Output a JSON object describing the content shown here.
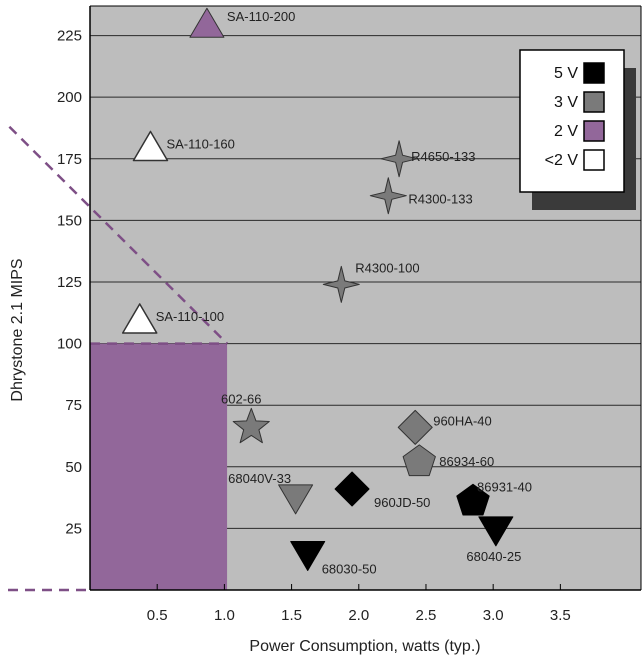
{
  "chart_data": {
    "type": "scatter",
    "xlabel": "Power Consumption, watts (typ.)",
    "ylabel": "Dhrystone 2.1 MIPS",
    "xlim": [
      0,
      4.1
    ],
    "ylim": [
      0,
      237
    ],
    "x_ticks": [
      "0.5",
      "1.0",
      "1.5",
      "2.0",
      "2.5",
      "3.0",
      "3.5"
    ],
    "x_tick_values": [
      0.5,
      1.0,
      1.5,
      2.0,
      2.5,
      3.0,
      3.5
    ],
    "y_ticks": [
      "25",
      "50",
      "75",
      "100",
      "125",
      "150",
      "175",
      "200",
      "225"
    ],
    "y_tick_values": [
      25,
      50,
      75,
      100,
      125,
      150,
      175,
      200,
      225
    ],
    "grid": "horizontal",
    "plot_background": "#bdbdbd",
    "highlight_region": {
      "x": [
        0,
        1.02
      ],
      "y": [
        0,
        100
      ],
      "color": "#92679a"
    },
    "dashed_line": {
      "points": [
        [
          0,
          100
        ],
        [
          1.02,
          100
        ]
      ],
      "color": "#7e4f86"
    },
    "dashed_diagonal": {
      "points": [
        [
          -0.6,
          188
        ],
        [
          1.02,
          100
        ]
      ],
      "color": "#7e4f86"
    },
    "legend_position": "top-right",
    "legend": [
      {
        "label": "5 V",
        "color": "#000000"
      },
      {
        "label": "3 V",
        "color": "#7a7a7a"
      },
      {
        "label": "2 V",
        "color": "#92679a"
      },
      {
        "label": "<2 V",
        "color": "#ffffff"
      }
    ],
    "points": [
      {
        "label": "SA-110-200",
        "x": 0.87,
        "y": 230,
        "shape": "triangle-up",
        "voltage": "2 V"
      },
      {
        "label": "SA-110-160",
        "x": 0.45,
        "y": 180,
        "shape": "triangle-up",
        "voltage": "<2 V"
      },
      {
        "label": "SA-110-100",
        "x": 0.37,
        "y": 110,
        "shape": "triangle-up",
        "voltage": "<2 V"
      },
      {
        "label": "R4650-133",
        "x": 2.3,
        "y": 175,
        "shape": "star4",
        "voltage": "3 V"
      },
      {
        "label": "R4300-133",
        "x": 2.22,
        "y": 160,
        "shape": "star4",
        "voltage": "3 V"
      },
      {
        "label": "R4300-100",
        "x": 1.87,
        "y": 124,
        "shape": "star4",
        "voltage": "3 V"
      },
      {
        "label": "602-66",
        "x": 1.2,
        "y": 66,
        "shape": "star5",
        "voltage": "3 V"
      },
      {
        "label": "960HA-40",
        "x": 2.42,
        "y": 66,
        "shape": "diamond",
        "voltage": "3 V"
      },
      {
        "label": "86934-60",
        "x": 2.45,
        "y": 52,
        "shape": "pentagon",
        "voltage": "3 V"
      },
      {
        "label": "68040V-33",
        "x": 1.53,
        "y": 37,
        "shape": "triangle-down",
        "voltage": "3 V"
      },
      {
        "label": "960JD-50",
        "x": 1.95,
        "y": 41,
        "shape": "diamond",
        "voltage": "5 V"
      },
      {
        "label": "86931-40",
        "x": 2.85,
        "y": 36,
        "shape": "pentagon",
        "voltage": "5 V"
      },
      {
        "label": "68040-25",
        "x": 3.02,
        "y": 24,
        "shape": "triangle-down",
        "voltage": "5 V"
      },
      {
        "label": "68030-50",
        "x": 1.62,
        "y": 14,
        "shape": "triangle-down",
        "voltage": "5 V"
      }
    ]
  }
}
